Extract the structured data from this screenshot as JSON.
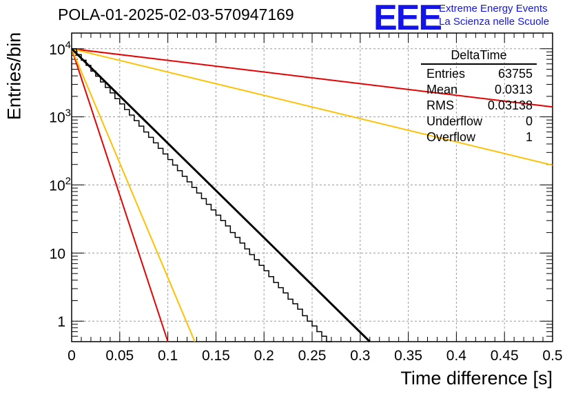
{
  "header": {
    "title": "POLA-01-2025-02-03-570947169",
    "logo_text": "EEE",
    "logo_line1": "Extreme Energy Events",
    "logo_line2": "La Scienza nelle Scuole"
  },
  "stats_box": {
    "title": "DeltaTime",
    "rows": [
      {
        "label": "Entries",
        "value": "63755"
      },
      {
        "label": "Mean",
        "value": "0.0313"
      },
      {
        "label": "RMS",
        "value": "0.03138"
      },
      {
        "label": "Underflow",
        "value": "0"
      },
      {
        "label": "Overflow",
        "value": "1"
      }
    ]
  },
  "colors": {
    "histogram": "#000000",
    "fit": "#000000",
    "red_line": "#e60000",
    "orange_line": "#ffc000",
    "logo": "#1414e6",
    "grid": "#999999"
  },
  "chart_data": {
    "type": "line",
    "xlabel": "Time difference [s]",
    "ylabel": "Entries/bin",
    "x_ticks": [
      "0",
      "0.05",
      "0.1",
      "0.15",
      "0.2",
      "0.25",
      "0.3",
      "0.35",
      "0.4",
      "0.45",
      "0.5"
    ],
    "y_ticks": [
      {
        "value": 1,
        "base": "1",
        "exp": ""
      },
      {
        "value": 10,
        "base": "10",
        "exp": ""
      },
      {
        "value": 100,
        "base": "10",
        "exp": "2"
      },
      {
        "value": 1000,
        "base": "10",
        "exp": "3"
      },
      {
        "value": 10000,
        "base": "10",
        "exp": "4"
      }
    ],
    "xlim": [
      0,
      0.5
    ],
    "ylim": [
      0.5,
      17000
    ],
    "log_y": true,
    "grid": true,
    "histogram": {
      "bin_width": 0.005,
      "values": [
        10000,
        8200,
        6800,
        5700,
        4700,
        3950,
        3250,
        2700,
        2250,
        1850,
        1550,
        1280,
        1060,
        880,
        730,
        600,
        500,
        415,
        345,
        285,
        236,
        196,
        162,
        134,
        111,
        92,
        76,
        63,
        52,
        43,
        36,
        30,
        25,
        20,
        17,
        14,
        11.5,
        9.5,
        8,
        6.6,
        5.5,
        4.5,
        3.7,
        3.1,
        2.6,
        2.1,
        1.8,
        1.5,
        1.2,
        1,
        0.85,
        0.7,
        0.6,
        0.5
      ]
    },
    "fit": {
      "name": "black fit",
      "x": [
        0,
        0.31
      ],
      "y": [
        10000,
        0.5
      ]
    },
    "lines": [
      {
        "name": "red-steep",
        "color": "#e60000",
        "x": [
          0,
          0.1
        ],
        "y": [
          10000,
          0.5
        ]
      },
      {
        "name": "orange-steep",
        "color": "#ffc000",
        "x": [
          0,
          0.128
        ],
        "y": [
          10000,
          0.5
        ]
      },
      {
        "name": "red-shallow",
        "color": "#e60000",
        "x": [
          0,
          0.5
        ],
        "y": [
          10000,
          1400
        ]
      },
      {
        "name": "orange-shallow",
        "color": "#ffc000",
        "x": [
          0,
          0.5
        ],
        "y": [
          10000,
          195
        ]
      }
    ]
  }
}
